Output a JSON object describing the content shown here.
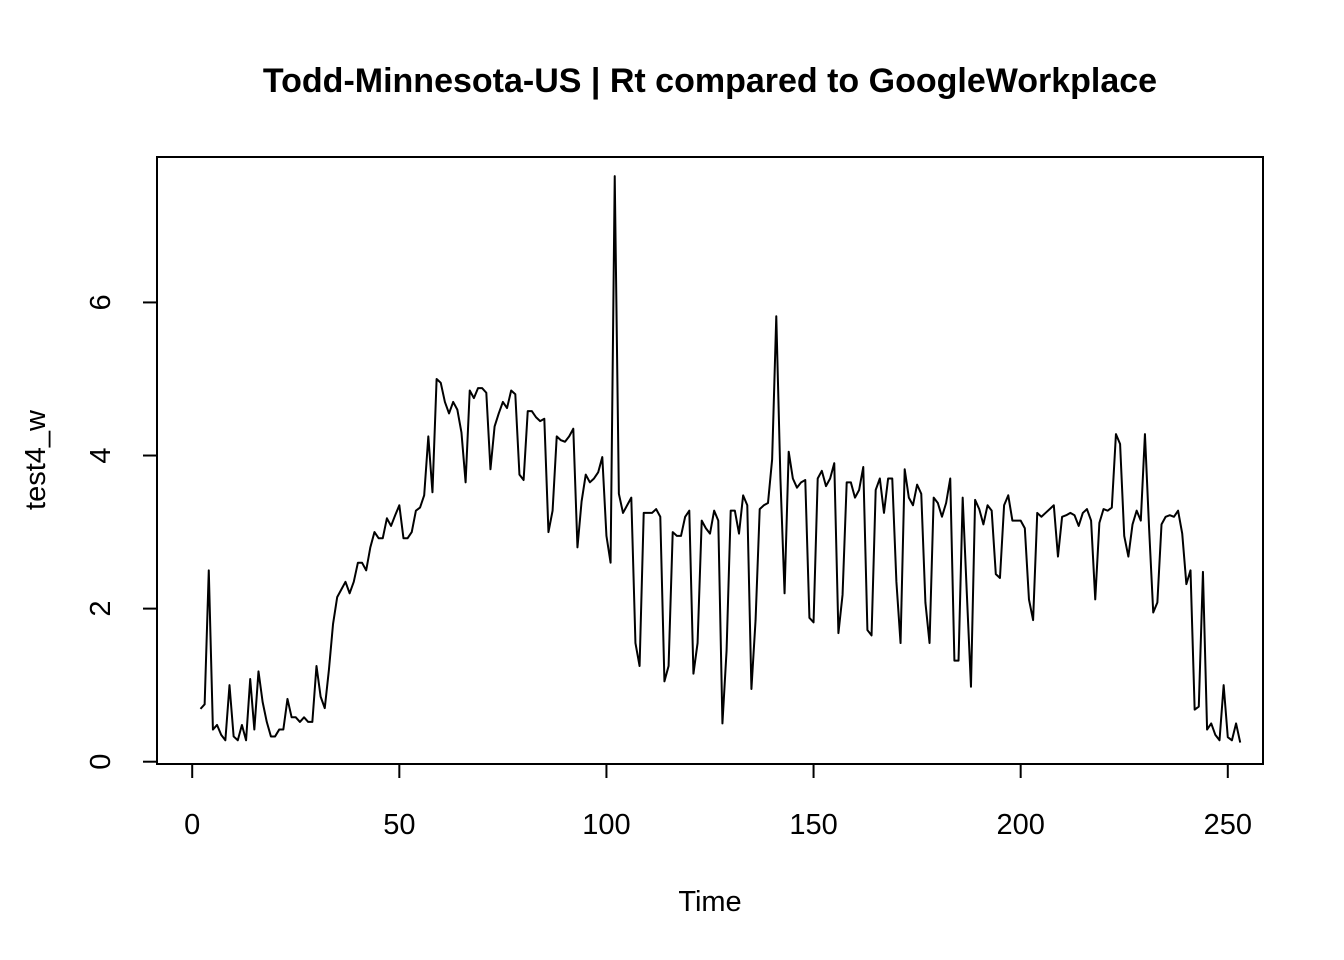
{
  "chart_data": {
    "type": "line",
    "title": "Todd-Minnesota-US | Rt compared to GoogleWorkplace",
    "xlabel": "Time",
    "ylabel": "test4_w",
    "xlim": [
      -8.5,
      258.5
    ],
    "ylim": [
      -0.03,
      7.9
    ],
    "x_ticks": [
      0,
      50,
      100,
      150,
      200,
      250
    ],
    "y_ticks": [
      0,
      2,
      4,
      6
    ],
    "grid": false,
    "x_start": 2,
    "series": [
      {
        "values": [
          0.69,
          0.75,
          2.5,
          0.42,
          0.48,
          0.35,
          0.28,
          1.0,
          0.33,
          0.28,
          0.48,
          0.28,
          1.08,
          0.42,
          1.18,
          0.78,
          0.52,
          0.33,
          0.33,
          0.42,
          0.42,
          0.82,
          0.58,
          0.58,
          0.52,
          0.58,
          0.52,
          0.52,
          1.25,
          0.85,
          0.7,
          1.2,
          1.8,
          2.15,
          2.25,
          2.35,
          2.2,
          2.35,
          2.6,
          2.6,
          2.5,
          2.8,
          3.0,
          2.92,
          2.92,
          3.18,
          3.08,
          3.22,
          3.35,
          2.92,
          2.92,
          3.0,
          3.28,
          3.32,
          3.48,
          4.25,
          3.52,
          5.0,
          4.95,
          4.7,
          4.55,
          4.7,
          4.6,
          4.3,
          3.65,
          4.85,
          4.75,
          4.88,
          4.88,
          4.82,
          3.82,
          4.38,
          4.55,
          4.7,
          4.62,
          4.85,
          4.8,
          3.75,
          3.68,
          4.58,
          4.58,
          4.5,
          4.45,
          4.48,
          3.0,
          3.28,
          4.25,
          4.2,
          4.18,
          4.25,
          4.35,
          2.8,
          3.4,
          3.75,
          3.65,
          3.7,
          3.78,
          3.98,
          2.95,
          2.6,
          7.65,
          3.5,
          3.25,
          3.35,
          3.45,
          1.55,
          1.25,
          3.25,
          3.25,
          3.25,
          3.3,
          3.2,
          1.05,
          1.25,
          3.0,
          2.95,
          2.95,
          3.2,
          3.28,
          1.15,
          1.55,
          3.15,
          3.05,
          2.98,
          3.28,
          3.15,
          0.5,
          1.45,
          3.28,
          3.28,
          2.98,
          3.48,
          3.35,
          0.95,
          1.85,
          3.3,
          3.35,
          3.38,
          3.95,
          5.82,
          3.7,
          2.2,
          4.05,
          3.7,
          3.58,
          3.65,
          3.68,
          1.88,
          1.82,
          3.7,
          3.8,
          3.6,
          3.7,
          3.9,
          1.68,
          2.18,
          3.65,
          3.65,
          3.45,
          3.55,
          3.85,
          1.72,
          1.65,
          3.55,
          3.7,
          3.25,
          3.7,
          3.7,
          2.35,
          1.55,
          3.82,
          3.45,
          3.35,
          3.62,
          3.5,
          2.08,
          1.55,
          3.45,
          3.38,
          3.2,
          3.38,
          3.7,
          1.32,
          1.32,
          3.45,
          2.2,
          0.98,
          3.42,
          3.3,
          3.1,
          3.35,
          3.28,
          2.45,
          2.4,
          3.35,
          3.48,
          3.15,
          3.15,
          3.15,
          3.05,
          2.12,
          1.85,
          3.25,
          3.2,
          3.25,
          3.3,
          3.35,
          2.68,
          3.2,
          3.22,
          3.25,
          3.22,
          3.08,
          3.25,
          3.3,
          3.15,
          2.12,
          3.12,
          3.3,
          3.28,
          3.32,
          4.28,
          4.15,
          2.95,
          2.68,
          3.1,
          3.28,
          3.15,
          4.28,
          3.05,
          1.95,
          2.08,
          3.1,
          3.2,
          3.22,
          3.2,
          3.28,
          2.98,
          2.32,
          2.5,
          0.68,
          0.72,
          2.48,
          0.42,
          0.5,
          0.35,
          0.28,
          1.0,
          0.32,
          0.28,
          0.5,
          0.25
        ]
      }
    ]
  }
}
